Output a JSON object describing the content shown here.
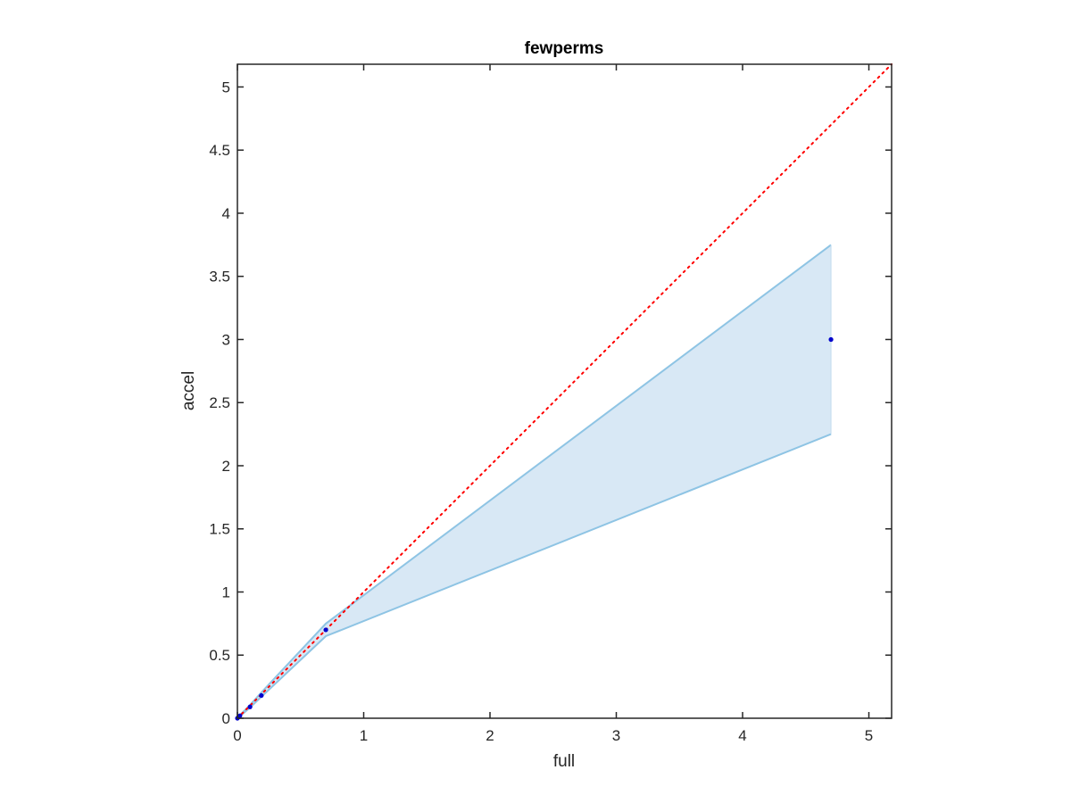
{
  "chart_data": {
    "type": "line",
    "title": "fewperms",
    "xlabel": "full",
    "ylabel": "accel",
    "xlim": [
      0,
      5.18
    ],
    "ylim": [
      0,
      5.18
    ],
    "x_ticks": [
      0,
      1,
      2,
      3,
      4,
      5
    ],
    "x_tick_labels": [
      "0",
      "1",
      "2",
      "3",
      "4",
      "5"
    ],
    "y_ticks": [
      0,
      0.5,
      1,
      1.5,
      2,
      2.5,
      3,
      3.5,
      4,
      4.5,
      5
    ],
    "y_tick_labels": [
      "0",
      "0.5",
      "1",
      "1.5",
      "2",
      "2.5",
      "3",
      "3.5",
      "4",
      "4.5",
      "5"
    ],
    "grid": false,
    "legend": "none",
    "band": {
      "x": [
        0,
        0.02,
        0.1,
        0.19,
        0.7,
        4.7
      ],
      "upper": [
        0,
        0.025,
        0.105,
        0.205,
        0.75,
        3.75
      ],
      "lower": [
        0,
        0.015,
        0.085,
        0.17,
        0.65,
        2.25
      ],
      "fill_color": "#d8e8f5",
      "edge_color": "#8ec4e4"
    },
    "points": {
      "x": [
        0,
        0.01,
        0.02,
        0.1,
        0.19,
        0.7,
        4.7
      ],
      "y": [
        0,
        0.01,
        0.02,
        0.09,
        0.18,
        0.7,
        3.0
      ],
      "color": "#0000cc"
    },
    "reference_line": {
      "x": [
        0,
        5.18
      ],
      "y": [
        0,
        5.18
      ],
      "style": "dotted",
      "color": "#ff0000"
    },
    "axis_color": "#262626"
  }
}
